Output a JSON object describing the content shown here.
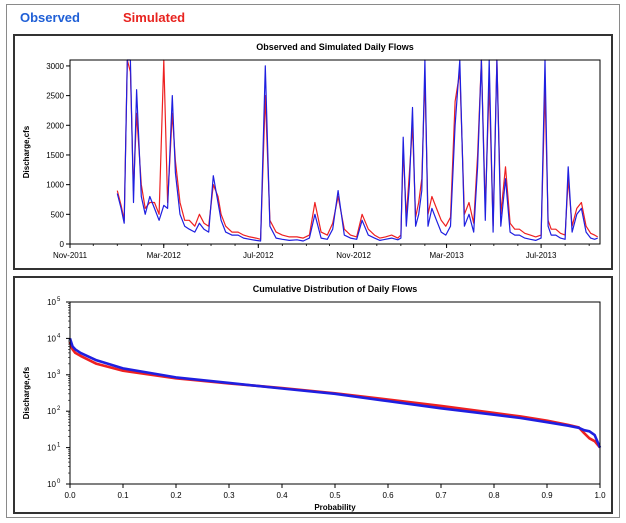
{
  "legend": [
    {
      "label": "Observed",
      "color": "#1f5fd6"
    },
    {
      "label": "Simulated",
      "color": "#e8231f"
    }
  ],
  "colors": {
    "observed": "#1f1fe0",
    "simulated": "#ee2020",
    "axis": "#000000"
  },
  "chart_data": [
    {
      "type": "line",
      "title": "Observed and Simulated Daily Flows",
      "xlabel": "",
      "ylabel": "Discharge,cfs",
      "x_tick_labels": [
        "Nov-2011",
        "Mar-2012",
        "Jul-2012",
        "Nov-2012",
        "Mar-2013",
        "Jul-2013"
      ],
      "xlim": [
        "2011-11-01",
        "2013-09-15"
      ],
      "yticks": [
        0,
        500,
        1000,
        1500,
        2000,
        2500,
        3000
      ],
      "ylim": [
        0,
        3100
      ],
      "grid": false,
      "series": [
        {
          "name": "Observed",
          "color": "#1f1fe0",
          "x": [
            "2012-01-01",
            "2012-01-06",
            "2012-01-10",
            "2012-01-14",
            "2012-01-18",
            "2012-01-22",
            "2012-01-26",
            "2012-02-01",
            "2012-02-06",
            "2012-02-12",
            "2012-02-18",
            "2012-02-24",
            "2012-03-01",
            "2012-03-06",
            "2012-03-12",
            "2012-03-16",
            "2012-03-22",
            "2012-03-28",
            "2012-04-03",
            "2012-04-10",
            "2012-04-16",
            "2012-04-22",
            "2012-04-28",
            "2012-05-04",
            "2012-05-10",
            "2012-05-14",
            "2012-05-20",
            "2012-05-28",
            "2012-06-05",
            "2012-06-12",
            "2012-06-20",
            "2012-06-28",
            "2012-07-04",
            "2012-07-10",
            "2012-07-16",
            "2012-07-24",
            "2012-08-01",
            "2012-08-10",
            "2012-08-20",
            "2012-08-28",
            "2012-09-05",
            "2012-09-12",
            "2012-09-20",
            "2012-09-28",
            "2012-10-05",
            "2012-10-12",
            "2012-10-20",
            "2012-10-28",
            "2012-11-05",
            "2012-11-12",
            "2012-11-20",
            "2012-11-28",
            "2012-12-05",
            "2012-12-12",
            "2012-12-20",
            "2012-12-28",
            "2013-01-01",
            "2013-01-04",
            "2013-01-08",
            "2013-01-12",
            "2013-01-16",
            "2013-01-20",
            "2013-01-24",
            "2013-01-28",
            "2013-02-01",
            "2013-02-05",
            "2013-02-10",
            "2013-02-16",
            "2013-02-22",
            "2013-02-28",
            "2013-03-06",
            "2013-03-12",
            "2013-03-18",
            "2013-03-24",
            "2013-03-30",
            "2013-04-05",
            "2013-04-10",
            "2013-04-15",
            "2013-04-20",
            "2013-04-25",
            "2013-04-30",
            "2013-05-05",
            "2013-05-10",
            "2013-05-16",
            "2013-05-22",
            "2013-05-28",
            "2013-06-03",
            "2013-06-10",
            "2013-06-17",
            "2013-06-24",
            "2013-07-01",
            "2013-07-06",
            "2013-07-10",
            "2013-07-14",
            "2013-07-20",
            "2013-07-26",
            "2013-08-01",
            "2013-08-05",
            "2013-08-10",
            "2013-08-16",
            "2013-08-22",
            "2013-08-28",
            "2013-09-03",
            "2013-09-08",
            "2013-09-12"
          ],
          "values": [
            850,
            600,
            350,
            3100,
            3100,
            700,
            2600,
            800,
            500,
            800,
            600,
            400,
            650,
            600,
            2500,
            1200,
            500,
            300,
            250,
            200,
            350,
            250,
            200,
            1150,
            700,
            400,
            200,
            150,
            150,
            100,
            80,
            60,
            50,
            3000,
            300,
            100,
            80,
            60,
            70,
            50,
            100,
            500,
            100,
            80,
            250,
            900,
            150,
            100,
            80,
            400,
            150,
            100,
            60,
            80,
            100,
            70,
            100,
            1800,
            300,
            1000,
            2300,
            300,
            500,
            900,
            3100,
            300,
            600,
            400,
            200,
            150,
            300,
            2000,
            3100,
            300,
            500,
            200,
            1300,
            3100,
            400,
            3100,
            200,
            3100,
            300,
            1100,
            200,
            150,
            150,
            100,
            80,
            60,
            100,
            3100,
            300,
            150,
            150,
            100,
            80,
            1300,
            200,
            500,
            600,
            200,
            100,
            80,
            100
          ]
        },
        {
          "name": "Simulated",
          "color": "#ee2020",
          "x": [
            "2012-01-01",
            "2012-01-06",
            "2012-01-10",
            "2012-01-14",
            "2012-01-18",
            "2012-01-22",
            "2012-01-26",
            "2012-02-01",
            "2012-02-06",
            "2012-02-12",
            "2012-02-18",
            "2012-02-24",
            "2012-03-01",
            "2012-03-06",
            "2012-03-12",
            "2012-03-16",
            "2012-03-22",
            "2012-03-28",
            "2012-04-03",
            "2012-04-10",
            "2012-04-16",
            "2012-04-22",
            "2012-04-28",
            "2012-05-04",
            "2012-05-10",
            "2012-05-14",
            "2012-05-20",
            "2012-05-28",
            "2012-06-05",
            "2012-06-12",
            "2012-06-20",
            "2012-06-28",
            "2012-07-04",
            "2012-07-10",
            "2012-07-16",
            "2012-07-24",
            "2012-08-01",
            "2012-08-10",
            "2012-08-20",
            "2012-08-28",
            "2012-09-05",
            "2012-09-12",
            "2012-09-20",
            "2012-09-28",
            "2012-10-05",
            "2012-10-12",
            "2012-10-20",
            "2012-10-28",
            "2012-11-05",
            "2012-11-12",
            "2012-11-20",
            "2012-11-28",
            "2012-12-05",
            "2012-12-12",
            "2012-12-20",
            "2012-12-28",
            "2013-01-01",
            "2013-01-04",
            "2013-01-08",
            "2013-01-12",
            "2013-01-16",
            "2013-01-20",
            "2013-01-24",
            "2013-01-28",
            "2013-02-01",
            "2013-02-05",
            "2013-02-10",
            "2013-02-16",
            "2013-02-22",
            "2013-02-28",
            "2013-03-06",
            "2013-03-12",
            "2013-03-18",
            "2013-03-24",
            "2013-03-30",
            "2013-04-05",
            "2013-04-10",
            "2013-04-15",
            "2013-04-20",
            "2013-04-25",
            "2013-04-30",
            "2013-05-05",
            "2013-05-10",
            "2013-05-16",
            "2013-05-22",
            "2013-05-28",
            "2013-06-03",
            "2013-06-10",
            "2013-06-17",
            "2013-06-24",
            "2013-07-01",
            "2013-07-06",
            "2013-07-10",
            "2013-07-14",
            "2013-07-20",
            "2013-07-26",
            "2013-08-01",
            "2013-08-05",
            "2013-08-10",
            "2013-08-16",
            "2013-08-22",
            "2013-08-28",
            "2013-09-03",
            "2013-09-08",
            "2013-09-12"
          ],
          "values": [
            900,
            650,
            400,
            3100,
            2900,
            900,
            2200,
            1000,
            600,
            700,
            700,
            500,
            3100,
            700,
            2200,
            1400,
            700,
            400,
            400,
            300,
            500,
            350,
            300,
            1000,
            800,
            500,
            300,
            200,
            200,
            150,
            120,
            100,
            80,
            2500,
            400,
            200,
            150,
            120,
            120,
            100,
            150,
            700,
            200,
            150,
            350,
            800,
            250,
            150,
            120,
            500,
            250,
            150,
            100,
            120,
            150,
            100,
            150,
            1600,
            450,
            1200,
            2000,
            450,
            700,
            1100,
            2800,
            500,
            800,
            600,
            400,
            300,
            450,
            2400,
            2900,
            500,
            700,
            350,
            1500,
            3100,
            600,
            2700,
            300,
            3100,
            500,
            1300,
            350,
            250,
            250,
            180,
            150,
            120,
            150,
            2600,
            400,
            250,
            250,
            180,
            150,
            1100,
            300,
            600,
            700,
            300,
            180,
            150,
            120
          ]
        }
      ]
    },
    {
      "type": "line",
      "title": "Cumulative Distribution of Daily Flows",
      "xlabel": "Probability",
      "ylabel": "Discharge,cfs",
      "xticks": [
        0.0,
        0.1,
        0.2,
        0.3,
        0.4,
        0.5,
        0.6,
        0.7,
        0.8,
        0.9,
        1.0
      ],
      "x_tick_labels": [
        "0.0",
        "0.1",
        "0.2",
        "0.3",
        "0.4",
        "0.5",
        "0.6",
        "0.7",
        "0.8",
        "0.9",
        "1.0"
      ],
      "xlim": [
        0,
        1
      ],
      "y_scale": "log",
      "y_tick_bases": [
        "10",
        "10",
        "10",
        "10",
        "10",
        "10"
      ],
      "y_tick_exponents": [
        "0",
        "1",
        "2",
        "3",
        "4",
        "5"
      ],
      "ylim": [
        1,
        100000
      ],
      "grid": false,
      "series": [
        {
          "name": "Observed",
          "color": "#1f1fe0",
          "x": [
            0.0,
            0.002,
            0.005,
            0.01,
            0.02,
            0.05,
            0.1,
            0.2,
            0.3,
            0.4,
            0.5,
            0.6,
            0.7,
            0.8,
            0.85,
            0.9,
            0.94,
            0.96,
            0.97,
            0.98,
            0.99,
            1.0
          ],
          "values": [
            10000,
            8000,
            6000,
            5000,
            4000,
            2500,
            1500,
            850,
            600,
            420,
            300,
            190,
            120,
            80,
            65,
            50,
            40,
            35,
            30,
            28,
            22,
            10
          ]
        },
        {
          "name": "Simulated",
          "color": "#ee2020",
          "x": [
            0.0,
            0.002,
            0.005,
            0.01,
            0.02,
            0.05,
            0.1,
            0.2,
            0.3,
            0.4,
            0.5,
            0.6,
            0.7,
            0.8,
            0.85,
            0.9,
            0.94,
            0.96,
            0.97,
            0.98,
            0.99,
            1.0
          ],
          "values": [
            8000,
            6000,
            5000,
            4000,
            3300,
            2000,
            1300,
            800,
            580,
            430,
            310,
            210,
            140,
            90,
            72,
            55,
            42,
            36,
            25,
            18,
            15,
            10
          ]
        }
      ]
    }
  ]
}
